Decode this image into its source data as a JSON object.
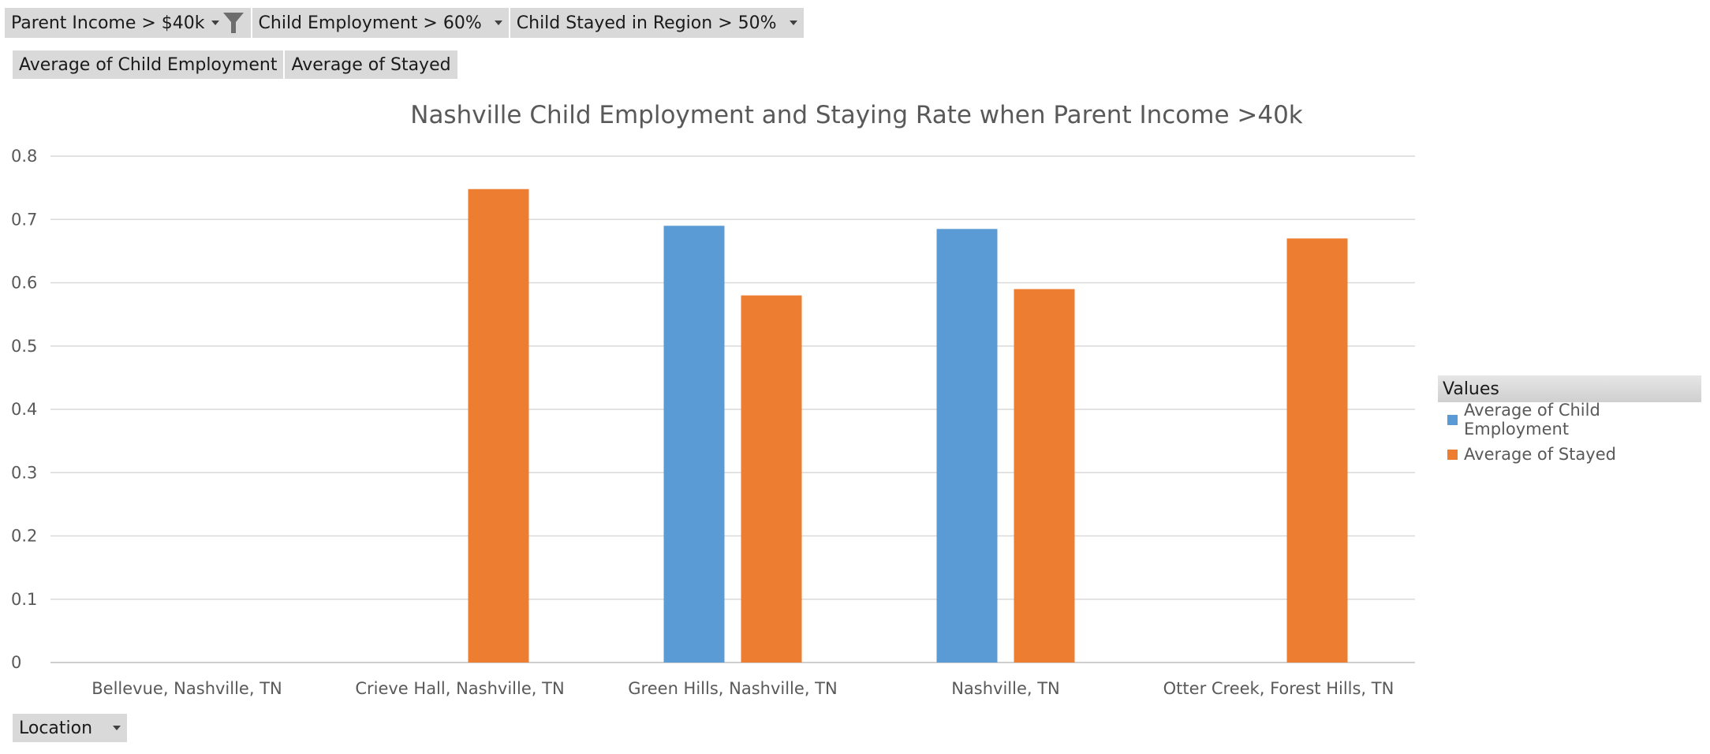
{
  "filters": {
    "parent_income": "Parent Income > $40k",
    "child_employment": "Child Employment > 60%",
    "child_stayed": "Child Stayed in Region > 50%"
  },
  "value_fields": {
    "child_employment": "Average of Child Employment",
    "stayed": "Average of Stayed"
  },
  "axis_field": "Location",
  "legend": {
    "header": "Values"
  },
  "chart_data": {
    "type": "bar",
    "title": "Nashville Child Employment and Staying Rate when Parent Income >40k",
    "categories": [
      "Bellevue, Nashville, TN",
      "Crieve Hall, Nashville, TN",
      "Green Hills, Nashville, TN",
      "Nashville, TN",
      "Otter Creek, Forest Hills, TN"
    ],
    "series": [
      {
        "name": "Average of Child Employment",
        "color": "#5b9bd5",
        "values": [
          null,
          null,
          0.69,
          0.685,
          null
        ]
      },
      {
        "name": "Average of Stayed",
        "color": "#ed7d31",
        "values": [
          null,
          0.748,
          0.58,
          0.59,
          0.67
        ]
      }
    ],
    "ylim": [
      0,
      0.8
    ],
    "yticks": [
      "0",
      "0.1",
      "0.2",
      "0.3",
      "0.4",
      "0.5",
      "0.6",
      "0.7",
      "0.8"
    ],
    "grid": true,
    "legend_position": "right"
  }
}
